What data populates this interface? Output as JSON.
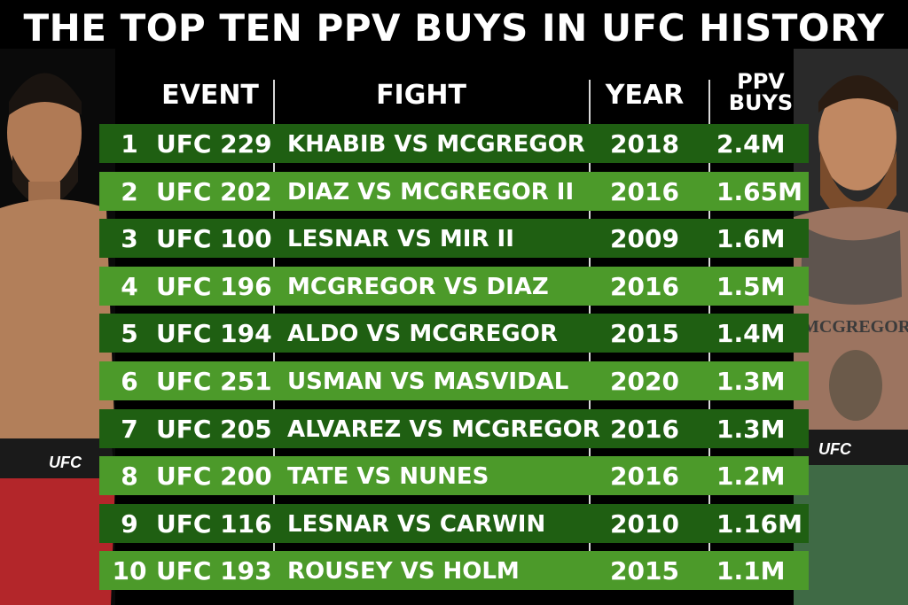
{
  "title": "THE TOP TEN PPV BUYS IN UFC HISTORY",
  "headers": {
    "event": "EVENT",
    "fight": "FIGHT",
    "year": "YEAR",
    "buys": "PPV BUYS"
  },
  "left_fighter": {
    "belt_text": "UFC",
    "shorts_color": "#b3262a"
  },
  "right_fighter": {
    "belt_text": "UFC",
    "shorts_color": "#3f6a45",
    "tattoo_text": "MCGREGOR"
  },
  "colors": {
    "row_dark": "#1f5f12",
    "row_light": "#4c9a2a",
    "background": "#000000"
  },
  "rows": [
    {
      "rank": "1",
      "event": "UFC 229",
      "fight": "KHABIB VS MCGREGOR",
      "year": "2018",
      "buys": "2.4M"
    },
    {
      "rank": "2",
      "event": "UFC 202",
      "fight": "DIAZ VS MCGREGOR II",
      "year": "2016",
      "buys": "1.65M"
    },
    {
      "rank": "3",
      "event": "UFC 100",
      "fight": "LESNAR VS MIR II",
      "year": "2009",
      "buys": "1.6M"
    },
    {
      "rank": "4",
      "event": "UFC 196",
      "fight": "MCGREGOR VS DIAZ",
      "year": "2016",
      "buys": "1.5M"
    },
    {
      "rank": "5",
      "event": "UFC 194",
      "fight": "ALDO VS MCGREGOR",
      "year": "2015",
      "buys": "1.4M"
    },
    {
      "rank": "6",
      "event": "UFC 251",
      "fight": "USMAN VS MASVIDAL",
      "year": "2020",
      "buys": "1.3M"
    },
    {
      "rank": "7",
      "event": "UFC 205",
      "fight": "ALVAREZ VS MCGREGOR",
      "year": "2016",
      "buys": "1.3M"
    },
    {
      "rank": "8",
      "event": "UFC 200",
      "fight": "TATE VS NUNES",
      "year": "2016",
      "buys": "1.2M"
    },
    {
      "rank": "9",
      "event": "UFC 116",
      "fight": "LESNAR VS CARWIN",
      "year": "2010",
      "buys": "1.16M"
    },
    {
      "rank": "10",
      "event": "UFC 193",
      "fight": "ROUSEY VS HOLM",
      "year": "2015",
      "buys": "1.1M"
    }
  ]
}
